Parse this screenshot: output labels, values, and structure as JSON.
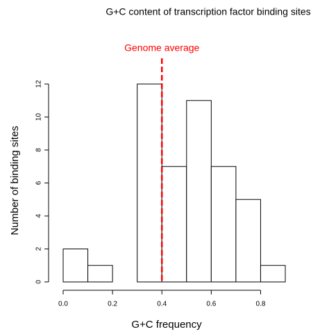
{
  "chart_data": {
    "type": "histogram",
    "title": "G+C content of transcription factor binding sites",
    "x_label": "G+C frequency",
    "y_label": "Number of binding sites",
    "bins": [
      0,
      0.1,
      0.2,
      0.3,
      0.4,
      0.5,
      0.6,
      0.7,
      0.8,
      0.9
    ],
    "values": [
      2,
      1,
      0,
      12,
      7,
      11,
      7,
      5,
      1
    ],
    "color": "#ffffff",
    "xlim": [
      0,
      0.9
    ],
    "ylim": [
      0,
      12
    ],
    "xticks": [
      {
        "value": 0,
        "label": "0.0"
      },
      0.2,
      0.4,
      0.6,
      0.8
    ],
    "yticks": [
      0,
      2,
      4,
      6,
      8,
      10,
      12
    ],
    "reference_lines": [
      {
        "value": 0.4,
        "label": "Genome average",
        "color": "#ff0000"
      }
    ]
  }
}
